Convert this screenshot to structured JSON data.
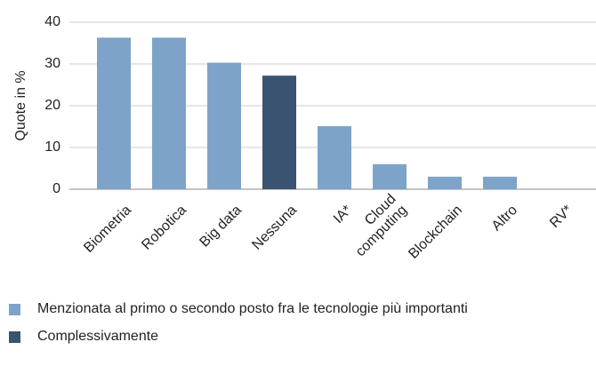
{
  "chart_data": {
    "type": "bar",
    "y_label": "Quote in %",
    "categories": [
      "Biometria",
      "Robotica",
      "Big data",
      "Nessuna",
      "IA*",
      "Cloud\ncomputing",
      "Blockchain",
      "Altro",
      "RV*"
    ],
    "series": [
      {
        "name": "Menzionata al primo o secondo posto fra le tecnologie più importanti",
        "color": "#7ea3c9",
        "values": [
          36.3,
          36.3,
          30.3,
          null,
          15.1,
          6,
          3,
          3,
          0
        ]
      },
      {
        "name": "Complessivamente",
        "color": "#3a5370",
        "values": [
          null,
          null,
          null,
          27.2,
          null,
          null,
          null,
          null,
          null
        ]
      }
    ],
    "ylim": [
      0,
      40
    ],
    "yticks": [
      0,
      10,
      20,
      30,
      40
    ],
    "grid": true
  }
}
